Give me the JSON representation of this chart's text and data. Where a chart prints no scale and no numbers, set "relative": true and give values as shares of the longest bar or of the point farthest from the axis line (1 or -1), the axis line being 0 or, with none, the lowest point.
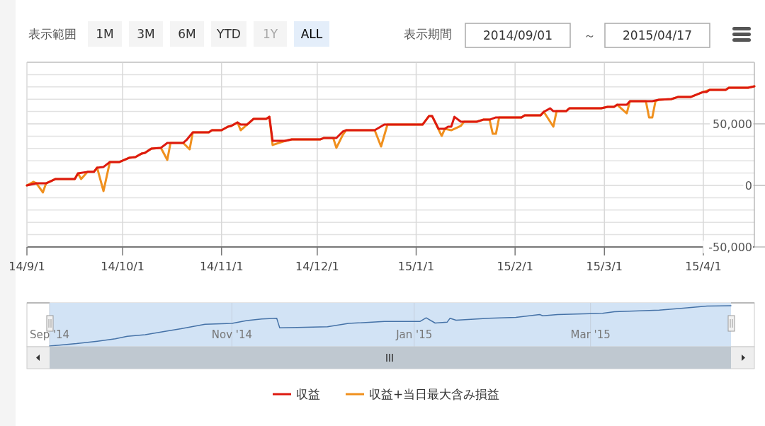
{
  "chart_data": [
    {
      "type": "line",
      "annotations": [
        "表示範囲",
        "1M",
        "3M",
        "6M",
        "YTD",
        "1Y",
        "ALL",
        "表示期間",
        "2014/09/01",
        "～",
        "2015/04/17"
      ],
      "xlim": [
        "2014-09-01",
        "2015-04-17"
      ],
      "xticks": [
        {
          "value": "2014-09-01",
          "label": "14/9/1"
        },
        {
          "value": "2014-10-01",
          "label": "14/10/1"
        },
        {
          "value": "2014-11-01",
          "label": "14/11/1"
        },
        {
          "value": "2014-12-01",
          "label": "14/12/1"
        },
        {
          "value": "2015-01-01",
          "label": "15/1/1"
        },
        {
          "value": "2015-02-01",
          "label": "15/2/1"
        },
        {
          "value": "2015-03-01",
          "label": "15/3/1"
        },
        {
          "value": "2015-04-01",
          "label": "15/4/1"
        }
      ],
      "ylim": [
        -50000,
        100000
      ],
      "yticks": [
        {
          "value": -50000,
          "label": "-50,000"
        },
        {
          "value": -40000,
          "label": null
        },
        {
          "value": -30000,
          "label": null
        },
        {
          "value": -20000,
          "label": null
        },
        {
          "value": -10000,
          "label": null
        },
        {
          "value": 0,
          "label": "0"
        },
        {
          "value": 10000,
          "label": null
        },
        {
          "value": 20000,
          "label": null
        },
        {
          "value": 30000,
          "label": null
        },
        {
          "value": 40000,
          "label": null
        },
        {
          "value": 50000,
          "label": "50,000"
        },
        {
          "value": 60000,
          "label": null
        },
        {
          "value": 70000,
          "label": null
        },
        {
          "value": 80000,
          "label": null
        },
        {
          "value": 90000,
          "label": null
        },
        {
          "value": 100000,
          "label": null
        }
      ],
      "grid": true,
      "legend": "bottom",
      "marker": "none",
      "line_style": "solid",
      "series": [
        {
          "name": "収益",
          "color": "#dd1a10",
          "x": [
            "2014-09-01",
            "2014-09-04",
            "2014-09-07",
            "2014-09-10",
            "2014-09-16",
            "2014-09-17",
            "2014-09-20",
            "2014-09-22",
            "2014-09-23",
            "2014-09-25",
            "2014-09-27",
            "2014-09-30",
            "2014-10-03",
            "2014-10-05",
            "2014-10-07",
            "2014-10-08",
            "2014-10-10",
            "2014-10-13",
            "2014-10-15",
            "2014-10-20",
            "2014-10-21",
            "2014-10-23",
            "2014-10-28",
            "2014-10-29",
            "2014-11-01",
            "2014-11-03",
            "2014-11-04",
            "2014-11-06",
            "2014-11-07",
            "2014-11-09",
            "2014-11-11",
            "2014-11-15",
            "2014-11-16",
            "2014-11-17",
            "2014-11-21",
            "2014-11-23",
            "2014-12-02",
            "2014-12-03",
            "2014-12-07",
            "2014-12-09",
            "2014-12-10",
            "2014-12-19",
            "2014-12-22",
            "2015-01-03",
            "2015-01-05",
            "2015-01-06",
            "2015-01-08",
            "2015-01-10",
            "2015-01-11",
            "2015-01-12",
            "2015-01-13",
            "2015-01-15",
            "2015-01-20",
            "2015-01-22",
            "2015-01-24",
            "2015-01-26",
            "2015-02-03",
            "2015-02-04",
            "2015-02-09",
            "2015-02-10",
            "2015-02-12",
            "2015-02-13",
            "2015-02-17",
            "2015-02-18",
            "2015-02-28",
            "2015-03-02",
            "2015-03-04",
            "2015-03-05",
            "2015-03-08",
            "2015-03-09",
            "2015-03-16",
            "2015-03-18",
            "2015-03-22",
            "2015-03-24",
            "2015-03-28",
            "2015-04-01",
            "2015-04-02",
            "2015-04-03",
            "2015-04-08",
            "2015-04-09",
            "2015-04-15",
            "2015-04-17"
          ],
          "values": [
            0,
            1700,
            1700,
            5200,
            5200,
            9800,
            11000,
            11000,
            14400,
            15000,
            19000,
            19000,
            22400,
            23000,
            25900,
            26400,
            29900,
            30500,
            34500,
            34500,
            36800,
            43100,
            43100,
            44800,
            44800,
            47700,
            48300,
            51100,
            49400,
            49400,
            54000,
            54000,
            55700,
            36200,
            36200,
            37400,
            37400,
            38500,
            38500,
            43700,
            44800,
            44800,
            49400,
            49400,
            56300,
            56300,
            46000,
            46000,
            47700,
            47700,
            55700,
            51700,
            51700,
            53400,
            53400,
            55200,
            55200,
            56900,
            56900,
            59800,
            62600,
            60300,
            60300,
            62600,
            62600,
            63800,
            63800,
            65500,
            65500,
            68400,
            68400,
            69500,
            70100,
            71800,
            71800,
            75900,
            75900,
            77600,
            77600,
            79300,
            79300,
            80500
          ]
        },
        {
          "name": "収益+当日最大含み損益",
          "color": "#f0901e",
          "x": [
            "2014-09-01",
            "2014-09-03",
            "2014-09-04",
            "2014-09-06",
            "2014-09-07",
            "2014-09-10",
            "2014-09-16",
            "2014-09-17",
            "2014-09-18",
            "2014-09-20",
            "2014-09-22",
            "2014-09-23",
            "2014-09-25",
            "2014-09-27",
            "2014-09-30",
            "2014-10-03",
            "2014-10-05",
            "2014-10-07",
            "2014-10-08",
            "2014-10-10",
            "2014-10-13",
            "2014-10-15",
            "2014-10-16",
            "2014-10-20",
            "2014-10-22",
            "2014-10-23",
            "2014-10-28",
            "2014-10-29",
            "2014-11-01",
            "2014-11-03",
            "2014-11-04",
            "2014-11-06",
            "2014-11-07",
            "2014-11-09",
            "2014-11-11",
            "2014-11-15",
            "2014-11-16",
            "2014-11-17",
            "2014-11-21",
            "2014-11-23",
            "2014-12-02",
            "2014-12-03",
            "2014-12-06",
            "2014-12-07",
            "2014-12-09",
            "2014-12-10",
            "2014-12-19",
            "2014-12-21",
            "2014-12-23",
            "2015-01-03",
            "2015-01-05",
            "2015-01-06",
            "2015-01-09",
            "2015-01-10",
            "2015-01-12",
            "2015-01-15",
            "2015-01-16",
            "2015-01-20",
            "2015-01-22",
            "2015-01-24",
            "2015-01-25",
            "2015-01-26",
            "2015-01-27",
            "2015-02-03",
            "2015-02-04",
            "2015-02-09",
            "2015-02-10",
            "2015-02-13",
            "2015-02-14",
            "2015-02-17",
            "2015-02-18",
            "2015-02-28",
            "2015-03-02",
            "2015-03-04",
            "2015-03-05",
            "2015-03-08",
            "2015-03-09",
            "2015-03-14",
            "2015-03-15",
            "2015-03-16",
            "2015-03-17",
            "2015-03-18",
            "2015-03-22",
            "2015-03-24",
            "2015-03-28",
            "2015-04-01",
            "2015-04-03",
            "2015-04-08",
            "2015-04-09",
            "2015-04-15",
            "2015-04-17"
          ],
          "values": [
            0,
            2900,
            1700,
            -5700,
            1700,
            5200,
            5200,
            9800,
            5200,
            11000,
            11000,
            14400,
            -4600,
            19000,
            19000,
            22400,
            23000,
            25900,
            26400,
            29900,
            30500,
            20700,
            34500,
            34500,
            29300,
            43100,
            43100,
            44800,
            44800,
            47700,
            48300,
            51100,
            44800,
            49400,
            54000,
            54000,
            55700,
            32800,
            36200,
            37400,
            37400,
            38500,
            38500,
            30500,
            41000,
            44800,
            44800,
            31600,
            49400,
            49400,
            56300,
            56300,
            40200,
            46000,
            44800,
            48300,
            51700,
            51700,
            53400,
            53400,
            41900,
            41900,
            55200,
            55200,
            56900,
            56900,
            59800,
            47700,
            60300,
            60300,
            62600,
            62600,
            63800,
            63800,
            65500,
            58600,
            68400,
            68400,
            55200,
            55200,
            68400,
            69500,
            70100,
            71800,
            71800,
            75900,
            77600,
            77600,
            79300,
            79300,
            80500
          ]
        }
      ]
    },
    {
      "type": "line",
      "relative": true,
      "tick_labels": "x",
      "grid": "x",
      "xlim": [
        "2014-09-01",
        "2015-04-17"
      ],
      "xticks": [
        {
          "value": "2014-09-01",
          "label": "Sep '14"
        },
        {
          "value": "2014-11-01",
          "label": "Nov '14"
        },
        {
          "value": "2015-01-01",
          "label": "Jan '15"
        },
        {
          "value": "2015-03-01",
          "label": "Mar '15"
        }
      ],
      "series": [
        {
          "color": "#4572a7",
          "x": [
            "2014-09-01",
            "2014-09-10",
            "2014-09-17",
            "2014-09-23",
            "2014-09-27",
            "2014-10-03",
            "2014-10-10",
            "2014-10-15",
            "2014-10-23",
            "2014-11-01",
            "2014-11-06",
            "2014-11-11",
            "2014-11-16",
            "2014-11-17",
            "2014-11-23",
            "2014-12-03",
            "2014-12-10",
            "2014-12-22",
            "2015-01-03",
            "2015-01-05",
            "2015-01-08",
            "2015-01-12",
            "2015-01-13",
            "2015-01-15",
            "2015-01-26",
            "2015-02-04",
            "2015-02-12",
            "2015-02-13",
            "2015-02-18",
            "2015-03-05",
            "2015-03-09",
            "2015-03-24",
            "2015-04-01",
            "2015-04-09",
            "2015-04-17"
          ],
          "values": [
            0,
            0.06,
            0.12,
            0.18,
            0.24,
            0.28,
            0.37,
            0.43,
            0.54,
            0.56,
            0.63,
            0.67,
            0.69,
            0.45,
            0.46,
            0.48,
            0.56,
            0.61,
            0.61,
            0.7,
            0.57,
            0.59,
            0.69,
            0.64,
            0.69,
            0.71,
            0.78,
            0.75,
            0.78,
            0.81,
            0.85,
            0.89,
            0.94,
            0.99,
            1
          ]
        }
      ]
    }
  ]
}
